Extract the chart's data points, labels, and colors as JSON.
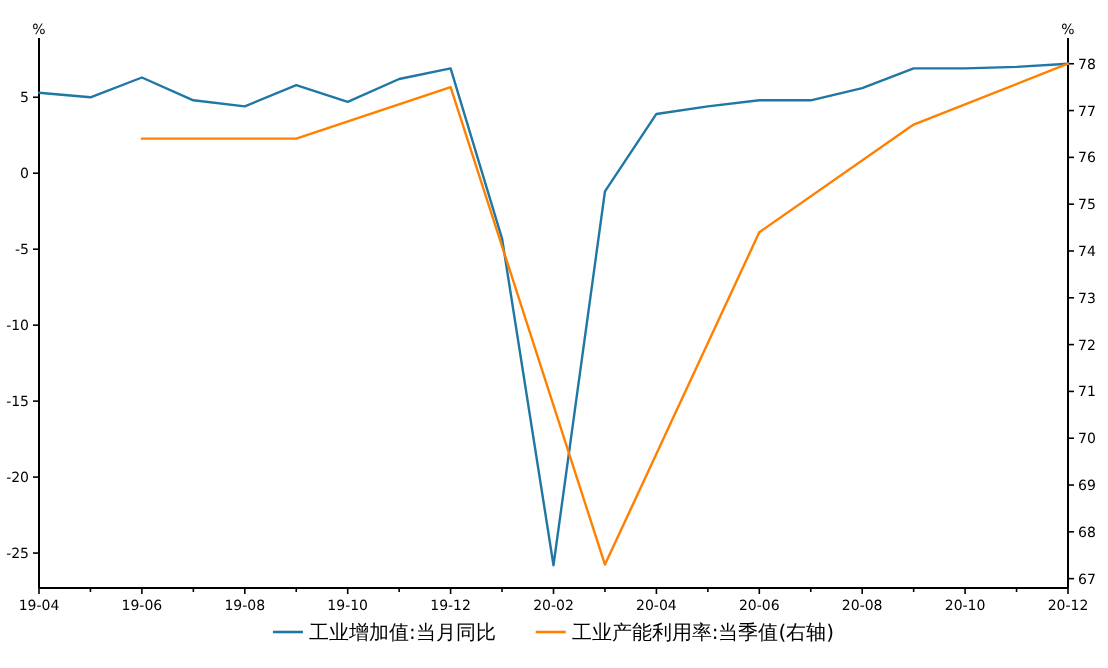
{
  "chart_data": {
    "type": "line",
    "ylabel": "%",
    "y2label": "%",
    "categories": [
      "19-04",
      null,
      "19-06",
      null,
      "19-08",
      null,
      "19-10",
      null,
      "19-12",
      null,
      "20-02",
      null,
      "20-04",
      null,
      "20-06",
      null,
      "20-08",
      null,
      "20-10",
      null,
      "20-12"
    ],
    "ylim": [
      -27.3,
      8.9
    ],
    "yticks": [
      -25,
      -20,
      -15,
      -10,
      -5,
      0,
      5
    ],
    "y2lim": [
      66.8,
      78.55
    ],
    "y2ticks": [
      67,
      68,
      69,
      70,
      71,
      72,
      73,
      74,
      75,
      76,
      77,
      78
    ],
    "grid": false,
    "legend": "bottom",
    "marker": "none",
    "line_style": "solid",
    "series": [
      {
        "name": "工业增加值:当月同比",
        "color": "#1f77a4",
        "values": [
          5.3,
          5.0,
          6.3,
          4.8,
          4.4,
          5.8,
          4.7,
          6.2,
          6.9,
          -4.3,
          -25.8,
          -1.2,
          3.9,
          4.4,
          4.8,
          4.8,
          5.6,
          6.9,
          6.9,
          7.0,
          7.2
        ]
      },
      {
        "name": "工业产能利用率:当季值(右轴)",
        "color": "#ff8000",
        "axis": "y2",
        "values": [
          null,
          null,
          76.4,
          null,
          null,
          76.4,
          null,
          null,
          77.5,
          null,
          null,
          67.3,
          null,
          null,
          74.4,
          null,
          null,
          76.7,
          null,
          null,
          78.0
        ]
      }
    ]
  }
}
